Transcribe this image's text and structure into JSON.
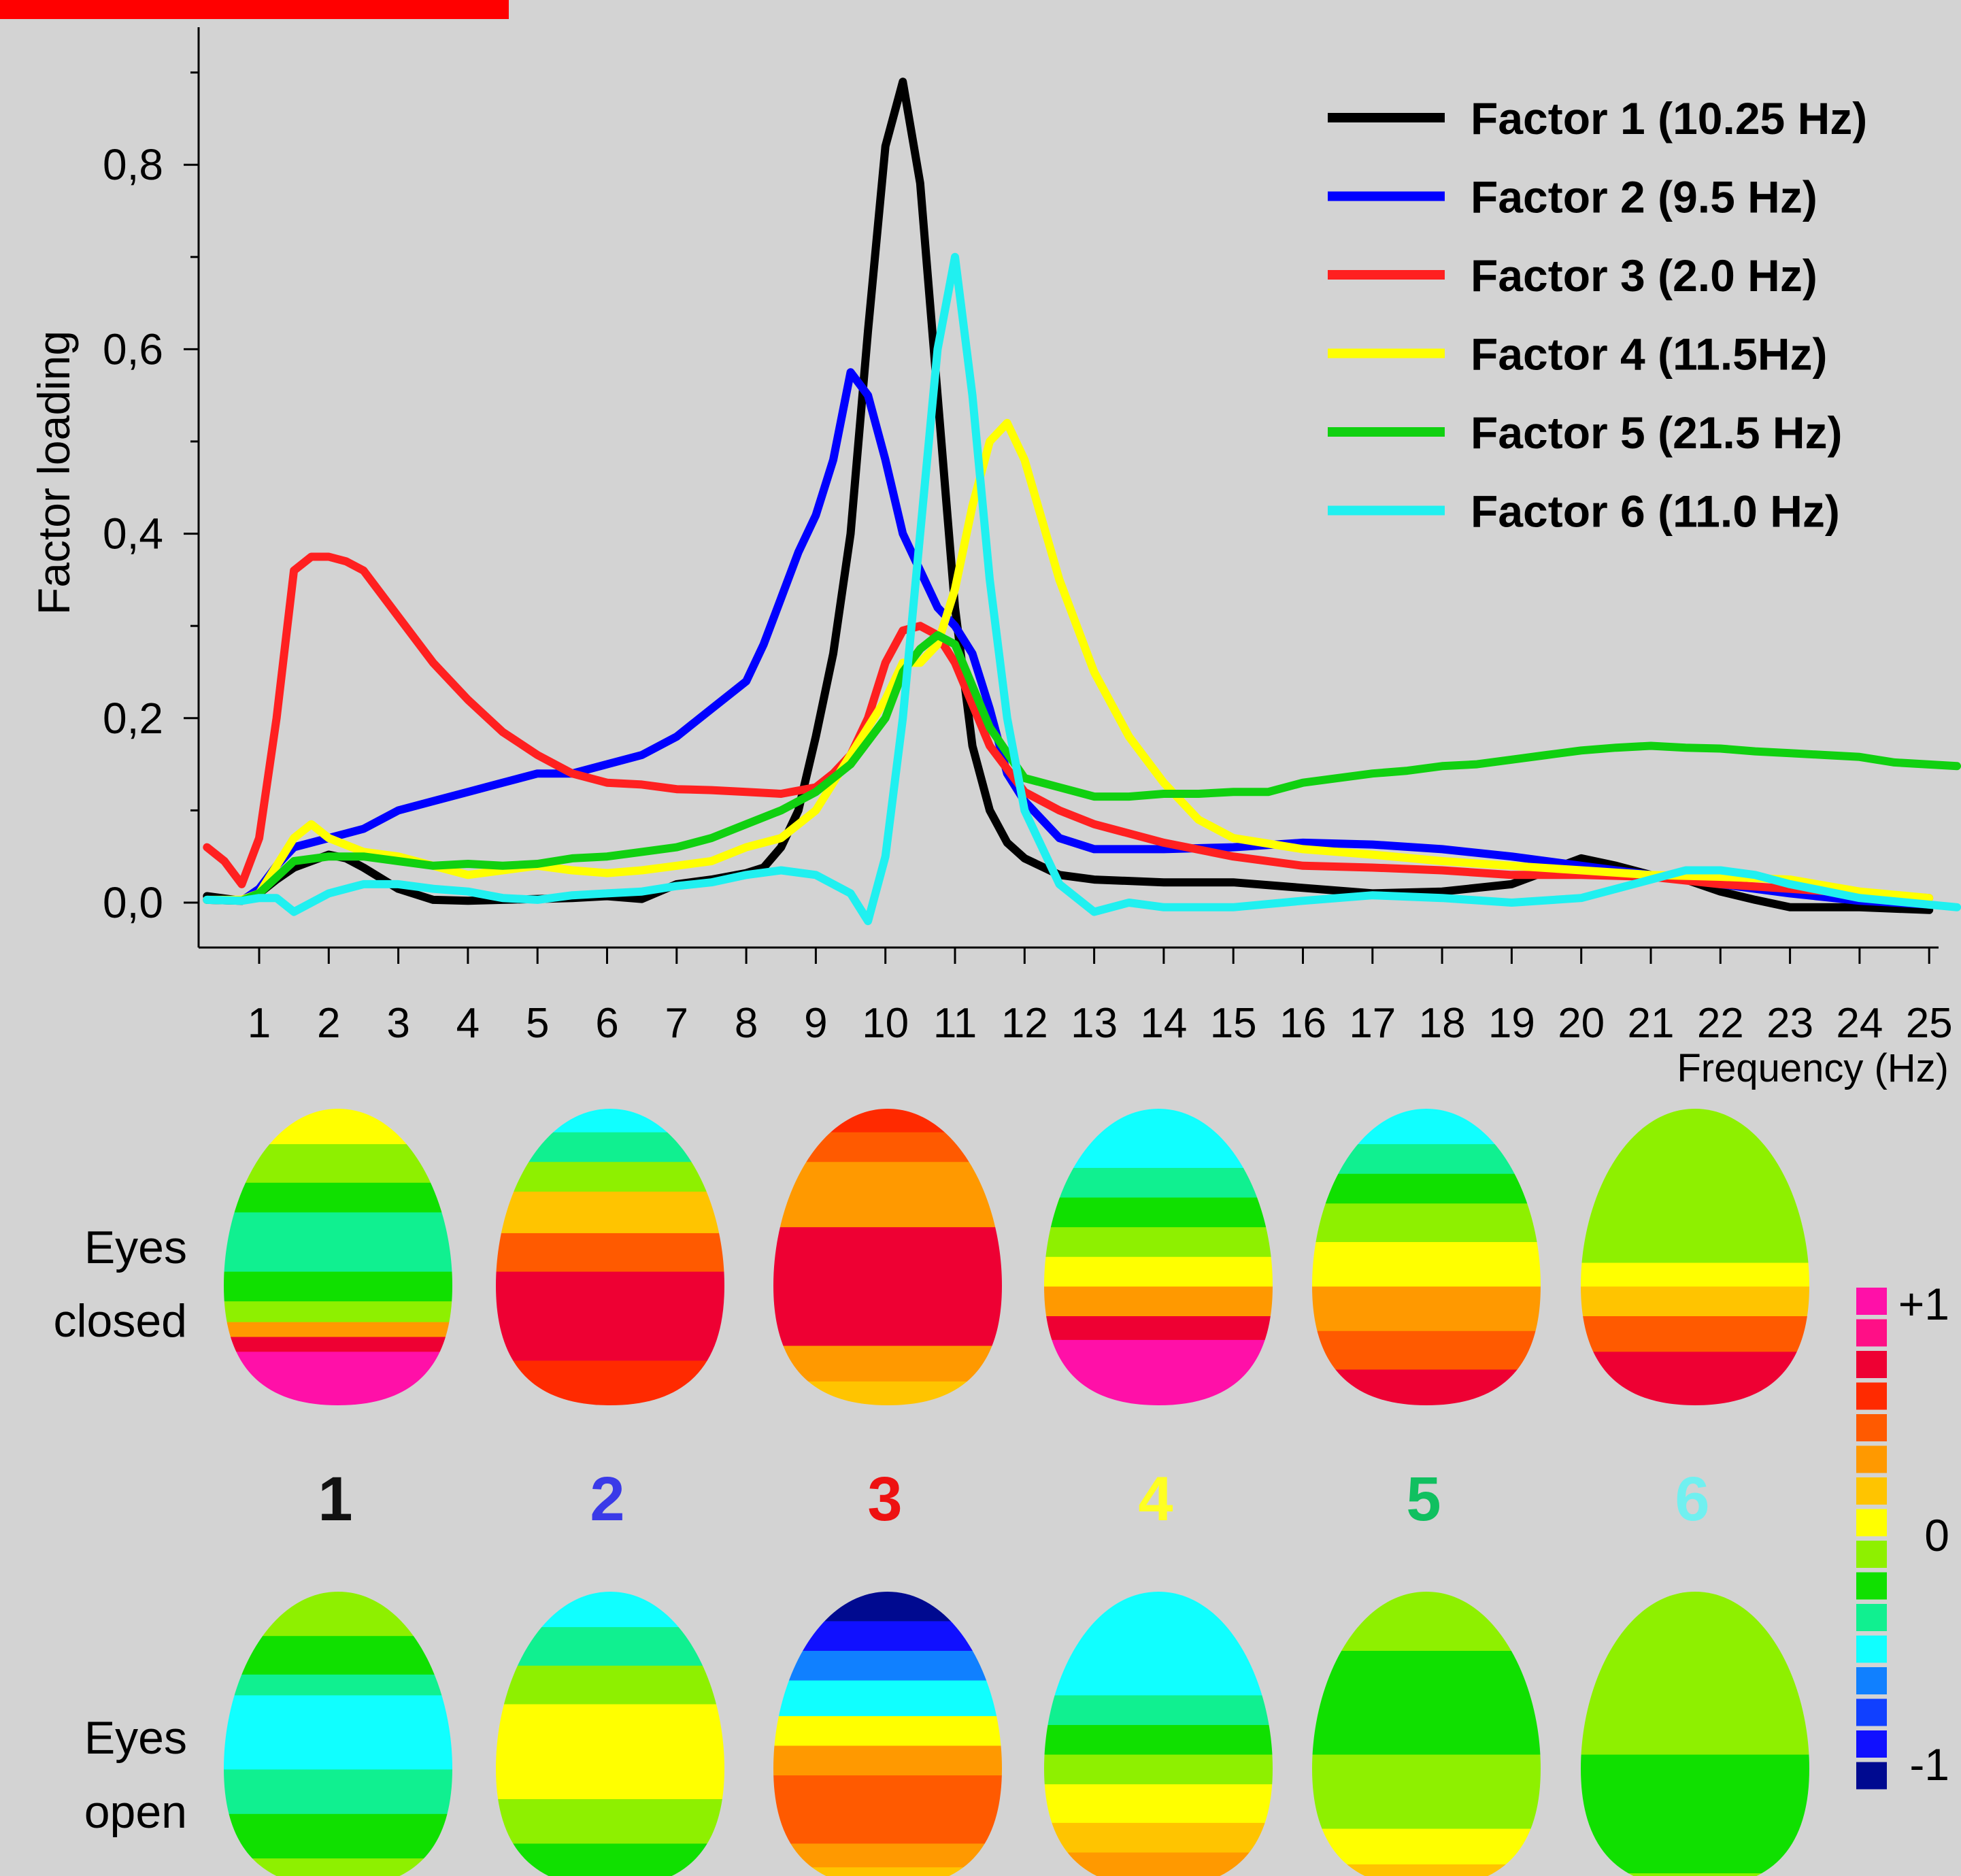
{
  "chart_data": {
    "type": "line",
    "ylabel": "Factor loading",
    "xlabel": "Frequency (Hz)",
    "xlim": [
      0.1,
      25.4
    ],
    "ylim": [
      -0.05,
      0.95
    ],
    "xticks": [
      "1",
      "2",
      "3",
      "4",
      "5",
      "6",
      "7",
      "8",
      "9",
      "10",
      "11",
      "12",
      "13",
      "14",
      "15",
      "16",
      "17",
      "18",
      "19",
      "20",
      "21",
      "22",
      "23",
      "24",
      "25"
    ],
    "yticks": [
      "0,0",
      "0,2",
      "0,4",
      "0,6",
      "0,8"
    ],
    "legend_position": "top-right",
    "series": [
      {
        "name": "Factor 1 (10.25 Hz)",
        "color": "#000000",
        "x": [
          0.25,
          0.75,
          1,
          1.25,
          1.5,
          1.75,
          2,
          2.25,
          2.5,
          3,
          3.5,
          4,
          4.5,
          5,
          5.5,
          6,
          6.5,
          7,
          7.5,
          8,
          8.25,
          8.5,
          8.75,
          9,
          9.25,
          9.5,
          9.75,
          10,
          10.25,
          10.5,
          10.75,
          11,
          11.25,
          11.5,
          11.75,
          12,
          12.5,
          13,
          14,
          15,
          16,
          17,
          18,
          19,
          20,
          20.5,
          21,
          21.5,
          22,
          22.5,
          23,
          24,
          25
        ],
        "y": [
          0.007,
          0.002,
          0.01,
          0.025,
          0.038,
          0.045,
          0.052,
          0.048,
          0.038,
          0.015,
          0.003,
          0.002,
          0.003,
          0.004,
          0.005,
          0.007,
          0.004,
          0.02,
          0.025,
          0.032,
          0.038,
          0.06,
          0.1,
          0.18,
          0.27,
          0.4,
          0.62,
          0.82,
          0.89,
          0.78,
          0.55,
          0.32,
          0.17,
          0.1,
          0.065,
          0.048,
          0.03,
          0.025,
          0.022,
          0.022,
          0.016,
          0.01,
          0.012,
          0.02,
          0.048,
          0.04,
          0.03,
          0.025,
          0.012,
          0.003,
          -0.005,
          -0.005,
          -0.008
        ]
      },
      {
        "name": "Factor 2 (9.5 Hz)",
        "color": "#0000ff",
        "x": [
          0.25,
          0.75,
          1,
          1.25,
          1.5,
          2,
          2.5,
          3,
          3.5,
          4,
          4.5,
          5,
          5.5,
          6,
          6.5,
          7,
          7.5,
          8,
          8.25,
          8.5,
          8.75,
          9,
          9.25,
          9.5,
          9.75,
          10,
          10.25,
          10.5,
          10.75,
          11,
          11.25,
          11.5,
          11.75,
          12,
          12.5,
          13,
          14,
          15,
          16,
          17,
          18,
          19,
          20,
          21,
          22,
          23,
          24,
          25
        ],
        "y": [
          0.003,
          0.002,
          0.015,
          0.04,
          0.06,
          0.07,
          0.08,
          0.1,
          0.11,
          0.12,
          0.13,
          0.14,
          0.14,
          0.15,
          0.16,
          0.18,
          0.21,
          0.24,
          0.28,
          0.33,
          0.38,
          0.42,
          0.48,
          0.575,
          0.55,
          0.48,
          0.4,
          0.36,
          0.32,
          0.3,
          0.27,
          0.21,
          0.14,
          0.11,
          0.07,
          0.058,
          0.058,
          0.06,
          0.065,
          0.063,
          0.058,
          0.05,
          0.04,
          0.03,
          0.02,
          0.01,
          0.002,
          -0.002
        ]
      },
      {
        "name": "Factor 3 (2.0 Hz)",
        "color": "#ff2020",
        "x": [
          0.25,
          0.5,
          0.75,
          1,
          1.25,
          1.5,
          1.75,
          2,
          2.25,
          2.5,
          3,
          3.5,
          4,
          4.5,
          5,
          5.5,
          6,
          6.5,
          7,
          7.5,
          8,
          8.5,
          9,
          9.25,
          9.5,
          9.75,
          10,
          10.25,
          10.5,
          10.75,
          11,
          11.5,
          12,
          12.5,
          13,
          14,
          15,
          16,
          17,
          18,
          19,
          20,
          21,
          22,
          23,
          24,
          25
        ],
        "y": [
          0.06,
          0.045,
          0.02,
          0.07,
          0.2,
          0.36,
          0.375,
          0.375,
          0.37,
          0.36,
          0.31,
          0.26,
          0.22,
          0.185,
          0.16,
          0.14,
          0.13,
          0.128,
          0.123,
          0.122,
          0.12,
          0.118,
          0.125,
          0.14,
          0.16,
          0.2,
          0.26,
          0.295,
          0.3,
          0.29,
          0.26,
          0.17,
          0.12,
          0.1,
          0.085,
          0.065,
          0.05,
          0.04,
          0.038,
          0.035,
          0.03,
          0.03,
          0.028,
          0.02,
          0.015,
          0.01,
          0.005
        ]
      },
      {
        "name": "Factor 4 (11.5Hz)",
        "color": "#ffff00",
        "x": [
          0.25,
          0.75,
          1,
          1.25,
          1.5,
          1.75,
          2,
          2.5,
          3,
          3.5,
          4,
          4.5,
          5,
          5.5,
          6,
          6.5,
          7,
          7.5,
          8,
          8.5,
          9,
          9.5,
          10,
          10.25,
          10.5,
          10.75,
          11,
          11.25,
          11.5,
          11.75,
          12,
          12.5,
          13,
          13.5,
          14,
          14.5,
          15,
          16,
          17,
          18,
          19,
          20,
          21,
          22,
          23,
          24,
          25
        ],
        "y": [
          0.003,
          0.003,
          0.01,
          0.04,
          0.07,
          0.085,
          0.07,
          0.055,
          0.05,
          0.04,
          0.03,
          0.035,
          0.04,
          0.035,
          0.032,
          0.035,
          0.04,
          0.045,
          0.06,
          0.07,
          0.1,
          0.16,
          0.22,
          0.26,
          0.26,
          0.28,
          0.34,
          0.43,
          0.5,
          0.52,
          0.48,
          0.35,
          0.25,
          0.18,
          0.13,
          0.09,
          0.07,
          0.058,
          0.052,
          0.045,
          0.04,
          0.035,
          0.03,
          0.028,
          0.025,
          0.012,
          0.005
        ]
      },
      {
        "name": "Factor 5 (21.5 Hz)",
        "color": "#10d010",
        "x": [
          0.25,
          0.75,
          1,
          1.5,
          2,
          2.5,
          3,
          3.5,
          4,
          4.5,
          5,
          5.5,
          6,
          6.5,
          7,
          7.5,
          8,
          8.5,
          9,
          9.5,
          10,
          10.25,
          10.5,
          10.75,
          11,
          11.5,
          12,
          12.5,
          13,
          13.5,
          14,
          14.5,
          15,
          15.5,
          16,
          16.5,
          17,
          17.5,
          18,
          18.5,
          19,
          19.5,
          20,
          20.5,
          21,
          21.5,
          22,
          22.5,
          23,
          23.5,
          24,
          24.5,
          25.4
        ],
        "y": [
          0.003,
          0.002,
          0.01,
          0.045,
          0.05,
          0.05,
          0.045,
          0.04,
          0.042,
          0.04,
          0.042,
          0.048,
          0.05,
          0.055,
          0.06,
          0.07,
          0.085,
          0.1,
          0.12,
          0.15,
          0.2,
          0.25,
          0.275,
          0.29,
          0.28,
          0.19,
          0.135,
          0.125,
          0.115,
          0.115,
          0.118,
          0.118,
          0.12,
          0.12,
          0.13,
          0.135,
          0.14,
          0.143,
          0.148,
          0.15,
          0.155,
          0.16,
          0.165,
          0.168,
          0.17,
          0.168,
          0.167,
          0.164,
          0.162,
          0.16,
          0.158,
          0.152,
          0.148
        ]
      },
      {
        "name": "Factor 6 (11.0 Hz)",
        "color": "#20f0f0",
        "x": [
          0.25,
          0.75,
          1,
          1.25,
          1.5,
          2,
          2.5,
          3,
          3.5,
          4,
          4.5,
          5,
          5.5,
          6,
          6.5,
          7,
          7.5,
          8,
          8.5,
          9,
          9.5,
          9.75,
          10,
          10.25,
          10.5,
          10.75,
          11,
          11.25,
          11.5,
          11.75,
          12,
          12.5,
          13,
          13.5,
          14,
          15,
          16,
          17,
          18,
          19,
          20,
          21,
          21.5,
          22,
          22.5,
          23,
          24,
          25.4
        ],
        "y": [
          0.003,
          0.002,
          0.005,
          0.005,
          -0.01,
          0.01,
          0.02,
          0.02,
          0.015,
          0.012,
          0.005,
          0.003,
          0.008,
          0.01,
          0.012,
          0.018,
          0.022,
          0.03,
          0.035,
          0.03,
          0.01,
          -0.02,
          0.05,
          0.2,
          0.4,
          0.6,
          0.7,
          0.55,
          0.35,
          0.2,
          0.1,
          0.02,
          -0.01,
          0.0,
          -0.005,
          -0.005,
          0.002,
          0.008,
          0.005,
          0.0,
          0.005,
          0.025,
          0.035,
          0.035,
          0.03,
          0.02,
          0.005,
          -0.005
        ]
      }
    ]
  },
  "maps": {
    "eyes_closed_label": [
      "Eyes",
      "closed"
    ],
    "eyes_open_label": [
      "Eyes",
      "open"
    ],
    "factor_numbers": [
      {
        "label": "1",
        "color": "#111111"
      },
      {
        "label": "2",
        "color": "#3a3ae8"
      },
      {
        "label": "3",
        "color": "#ee1111"
      },
      {
        "label": "4",
        "color": "#ffff22"
      },
      {
        "label": "5",
        "color": "#10c060"
      },
      {
        "label": "6",
        "color": "#70f0f0"
      }
    ],
    "colorbar": {
      "labels": [
        "+1",
        "0",
        "-1"
      ],
      "colors": [
        "#ff10a8",
        "#ff0f86",
        "#ee0033",
        "#ff2a00",
        "#ff5a00",
        "#ff9900",
        "#ffc400",
        "#ffff00",
        "#8ef000",
        "#10e000",
        "#10f090",
        "#10ffff",
        "#1080ff",
        "#1040ff",
        "#1010ff",
        "#000a90"
      ]
    }
  }
}
